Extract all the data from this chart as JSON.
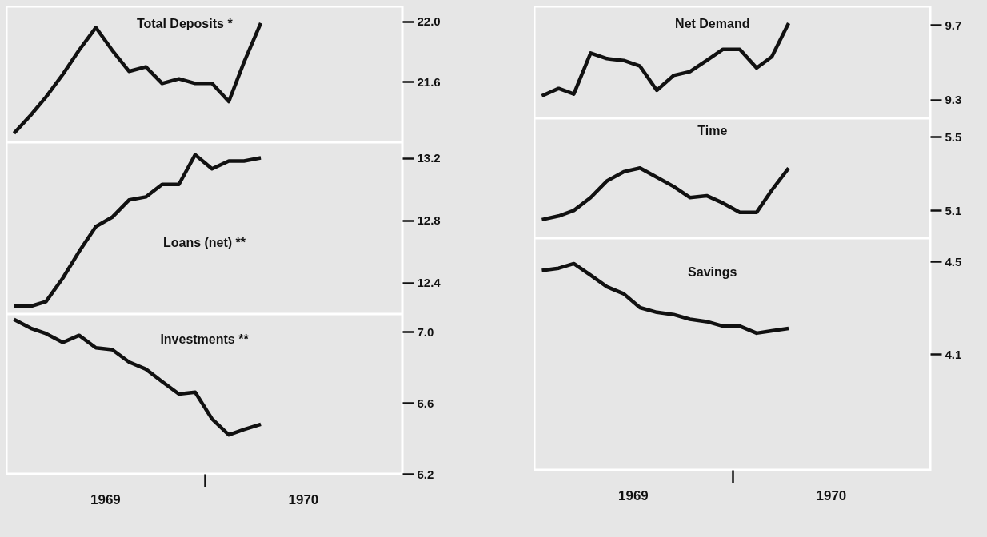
{
  "chart_data": [
    {
      "type": "line",
      "x": [
        "1969-01-15",
        "1969-02-15",
        "1969-03-15",
        "1969-04-15",
        "1969-05-15",
        "1969-06-15",
        "1969-07-15",
        "1969-08-15",
        "1969-09-15",
        "1969-10-15",
        "1969-11-15",
        "1969-12-15",
        "1970-01-15",
        "1970-02-15",
        "1970-03-15",
        "1970-04-15"
      ],
      "xlim": [
        "1969-01-01",
        "1971-01-01"
      ],
      "ylim": [
        21.2,
        22.1
      ],
      "yticks": [
        21.6,
        {
          "value": 22,
          "label": "22.0"
        }
      ],
      "tick_labels": "y",
      "series": [
        {
          "name": "Total Deposits *",
          "color": "#111111",
          "values": [
            21.26,
            21.38,
            21.5,
            21.65,
            21.81,
            21.96,
            21.81,
            21.67,
            21.7,
            21.59,
            21.62,
            21.59,
            21.59,
            21.47,
            21.73,
            21.99
          ]
        }
      ]
    },
    {
      "type": "line",
      "x": [
        "1969-01-15",
        "1969-02-15",
        "1969-03-15",
        "1969-04-15",
        "1969-05-15",
        "1969-06-15",
        "1969-07-15",
        "1969-08-15",
        "1969-09-15",
        "1969-10-15",
        "1969-11-15",
        "1969-12-15",
        "1970-01-15",
        "1970-02-15",
        "1970-03-15",
        "1970-04-15"
      ],
      "xlim": [
        "1969-01-01",
        "1971-01-01"
      ],
      "ylim": [
        12.2,
        13.3
      ],
      "yticks": [
        12.4,
        12.8,
        13.2
      ],
      "tick_labels": "y",
      "series": [
        {
          "name": "Loans (net) **",
          "color": "#111111",
          "values": [
            12.25,
            12.25,
            12.28,
            12.43,
            12.6,
            12.76,
            12.82,
            12.93,
            12.95,
            13.03,
            13.03,
            13.22,
            13.13,
            13.18,
            13.18,
            13.2
          ]
        }
      ]
    },
    {
      "type": "line",
      "x": [
        "1969-01-15",
        "1969-02-15",
        "1969-03-15",
        "1969-04-15",
        "1969-05-15",
        "1969-06-15",
        "1969-07-15",
        "1969-08-15",
        "1969-09-15",
        "1969-10-15",
        "1969-11-15",
        "1969-12-15",
        "1970-01-15",
        "1970-02-15",
        "1970-03-15",
        "1970-04-15"
      ],
      "xlim": [
        "1969-01-01",
        "1971-01-01"
      ],
      "ylim": [
        6.2,
        7.1
      ],
      "yticks": [
        6.2,
        6.6,
        {
          "value": 7,
          "label": "7.0"
        }
      ],
      "xticks": [
        {
          "value": "1969-07-02",
          "label": "1969"
        },
        {
          "value": "1970-01-01",
          "label": null
        },
        {
          "value": "1970-07-02",
          "label": "1970"
        }
      ],
      "series": [
        {
          "name": "Investments **",
          "color": "#111111",
          "values": [
            7.07,
            7.02,
            6.99,
            6.94,
            6.98,
            6.91,
            6.9,
            6.83,
            6.79,
            6.72,
            6.65,
            6.66,
            6.51,
            6.42,
            6.45,
            6.48
          ]
        }
      ]
    },
    {
      "type": "line",
      "x": [
        "1969-01-15",
        "1969-02-15",
        "1969-03-15",
        "1969-04-15",
        "1969-05-15",
        "1969-06-15",
        "1969-07-15",
        "1969-08-15",
        "1969-09-15",
        "1969-10-15",
        "1969-11-15",
        "1969-12-15",
        "1970-01-15",
        "1970-02-15",
        "1970-03-15",
        "1970-04-15"
      ],
      "xlim": [
        "1969-01-01",
        "1971-01-01"
      ],
      "ylim": [
        9.2,
        9.8
      ],
      "yticks": [
        9.3,
        9.7
      ],
      "tick_labels": "y",
      "series": [
        {
          "name": "Net Demand",
          "color": "#111111",
          "values": [
            9.32,
            9.36,
            9.33,
            9.55,
            9.52,
            9.51,
            9.48,
            9.35,
            9.43,
            9.45,
            9.51,
            9.57,
            9.57,
            9.47,
            9.53,
            9.71
          ]
        }
      ]
    },
    {
      "type": "line",
      "x": [
        "1969-01-15",
        "1969-02-15",
        "1969-03-15",
        "1969-04-15",
        "1969-05-15",
        "1969-06-15",
        "1969-07-15",
        "1969-08-15",
        "1969-09-15",
        "1969-10-15",
        "1969-11-15",
        "1969-12-15",
        "1970-01-15",
        "1970-02-15",
        "1970-03-15",
        "1970-04-15"
      ],
      "xlim": [
        "1969-01-01",
        "1971-01-01"
      ],
      "ylim": [
        4.95,
        5.6
      ],
      "yticks": [
        5.1,
        5.5
      ],
      "tick_labels": "y",
      "series": [
        {
          "name": "Time",
          "color": "#111111",
          "values": [
            5.05,
            5.07,
            5.1,
            5.17,
            5.26,
            5.31,
            5.33,
            5.28,
            5.23,
            5.17,
            5.18,
            5.14,
            5.09,
            5.09,
            5.21,
            5.33
          ]
        }
      ]
    },
    {
      "type": "line",
      "x": [
        "1969-01-15",
        "1969-02-15",
        "1969-03-15",
        "1969-04-15",
        "1969-05-15",
        "1969-06-15",
        "1969-07-15",
        "1969-08-15",
        "1969-09-15",
        "1969-10-15",
        "1969-11-15",
        "1969-12-15",
        "1970-01-15",
        "1970-02-15",
        "1970-03-15",
        "1970-04-15"
      ],
      "xlim": [
        "1969-01-01",
        "1971-01-01"
      ],
      "ylim": [
        3.6,
        4.6
      ],
      "yticks": [
        4.1,
        4.5
      ],
      "xticks": [
        {
          "value": "1969-07-02",
          "label": "1969"
        },
        {
          "value": "1970-01-01",
          "label": null
        },
        {
          "value": "1970-07-02",
          "label": "1970"
        }
      ],
      "series": [
        {
          "name": "Savings",
          "color": "#111111",
          "values": [
            4.46,
            4.47,
            4.49,
            4.44,
            4.39,
            4.36,
            4.3,
            4.28,
            4.27,
            4.25,
            4.24,
            4.22,
            4.22,
            4.19,
            4.2,
            4.21
          ]
        }
      ]
    }
  ]
}
